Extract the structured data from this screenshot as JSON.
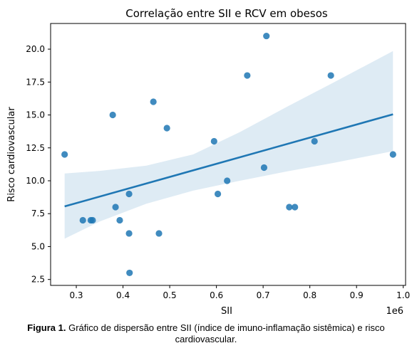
{
  "chart_data": {
    "type": "scatter",
    "title": "Correlação entre SII e RCV em obesos",
    "xlabel": "SII",
    "ylabel": "Risco cardiovascular",
    "x_offset_label": "1e6",
    "xlim": [
      0.245,
      1.005
    ],
    "ylim": [
      2.05,
      21.95
    ],
    "xticks": [
      0.3,
      0.4,
      0.5,
      0.6,
      0.7,
      0.8,
      0.9,
      1.0
    ],
    "xtick_labels": [
      "0.3",
      "0.4",
      "0.5",
      "0.6",
      "0.7",
      "0.8",
      "0.9",
      "1.0"
    ],
    "yticks": [
      2.5,
      5.0,
      7.5,
      10.0,
      12.5,
      15.0,
      17.5,
      20.0
    ],
    "ytick_labels": [
      "2.5",
      "5.0",
      "7.5",
      "10.0",
      "12.5",
      "15.0",
      "17.5",
      "20.0"
    ],
    "grid": false,
    "colors": {
      "points": "#1f77b4",
      "line": "#1f77b4",
      "band": "#1f77b4"
    },
    "points": [
      {
        "x": 0.275,
        "y": 12
      },
      {
        "x": 0.314,
        "y": 7
      },
      {
        "x": 0.331,
        "y": 7
      },
      {
        "x": 0.335,
        "y": 7
      },
      {
        "x": 0.378,
        "y": 15
      },
      {
        "x": 0.384,
        "y": 8
      },
      {
        "x": 0.393,
        "y": 7
      },
      {
        "x": 0.413,
        "y": 6
      },
      {
        "x": 0.413,
        "y": 9
      },
      {
        "x": 0.414,
        "y": 3
      },
      {
        "x": 0.465,
        "y": 16
      },
      {
        "x": 0.477,
        "y": 6
      },
      {
        "x": 0.494,
        "y": 14
      },
      {
        "x": 0.595,
        "y": 13
      },
      {
        "x": 0.603,
        "y": 9
      },
      {
        "x": 0.623,
        "y": 10
      },
      {
        "x": 0.666,
        "y": 18
      },
      {
        "x": 0.702,
        "y": 11
      },
      {
        "x": 0.707,
        "y": 21
      },
      {
        "x": 0.756,
        "y": 8
      },
      {
        "x": 0.768,
        "y": 8
      },
      {
        "x": 0.81,
        "y": 13
      },
      {
        "x": 0.845,
        "y": 18
      },
      {
        "x": 0.978,
        "y": 12
      }
    ],
    "regression": {
      "x": [
        0.275,
        0.978
      ],
      "y": [
        8.05,
        15.05
      ]
    },
    "confidence_band": {
      "x": [
        0.275,
        0.35,
        0.45,
        0.55,
        0.65,
        0.75,
        0.85,
        0.978
      ],
      "upper": [
        10.55,
        10.75,
        11.15,
        12.0,
        13.7,
        15.6,
        17.45,
        19.85
      ],
      "lower": [
        5.6,
        6.9,
        8.25,
        9.25,
        10.0,
        10.7,
        11.35,
        12.25
      ]
    }
  },
  "caption": {
    "bold": "Figura 1.",
    "text": " Gráfico de dispersão entre SII (índice de imuno-inflamação sistêmica) e risco cardiovascular."
  }
}
